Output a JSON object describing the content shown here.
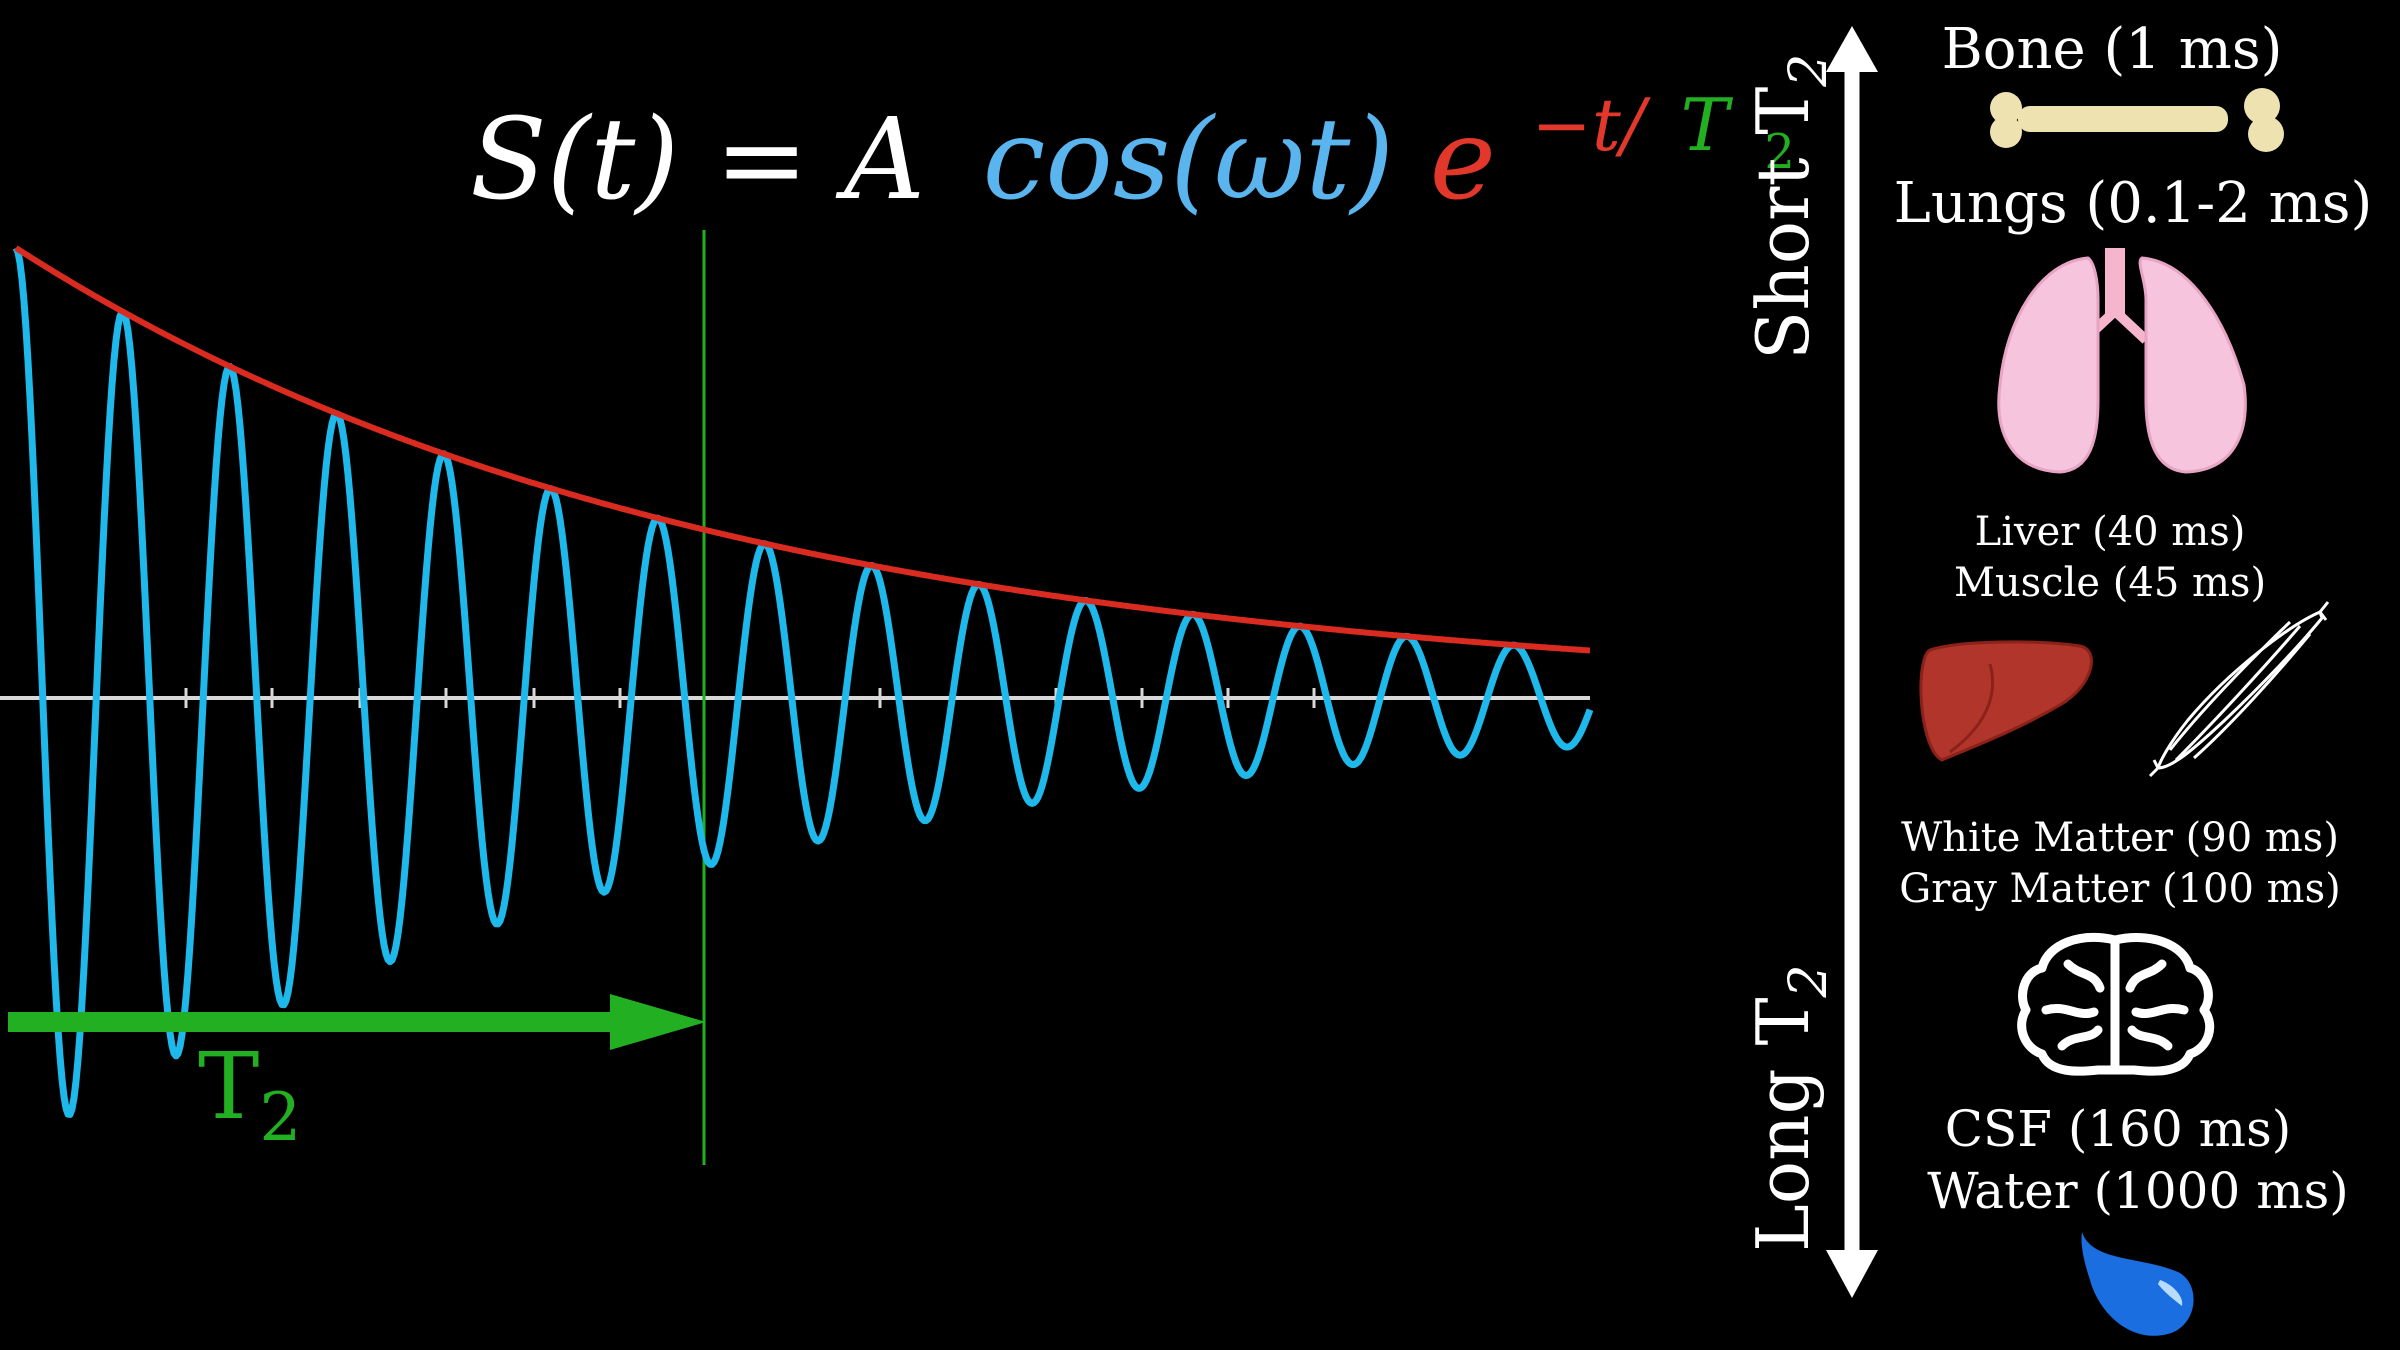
{
  "equation": {
    "lhs": "S(t) = A",
    "cos_part": "cos(ωt)",
    "exp_base": "e",
    "exp_sign": "−t/",
    "exp_T": "T",
    "exp_sub": "2"
  },
  "colors": {
    "signal": "#1fb8ea",
    "envelope": "#d92b20",
    "t2_marker": "#22b022",
    "axis": "#d8d8d8",
    "text": "#ffffff",
    "cos_text": "#5ab4ee",
    "exp_text": "#e2382c"
  },
  "t2_marker": {
    "label": "T",
    "sub": "2"
  },
  "scale": {
    "top_label": "Short T",
    "top_sub": "2",
    "bottom_label": "Long T",
    "bottom_sub": "2"
  },
  "tissues": [
    {
      "label": "Bone (1 ms)",
      "icon": "bone-icon"
    },
    {
      "label": "Lungs (0.1-2 ms)",
      "icon": "lungs-icon"
    },
    {
      "label": "Liver (40 ms)",
      "icon": "liver-icon"
    },
    {
      "label": "Muscle (45 ms)",
      "icon": "muscle-icon"
    },
    {
      "label": "White Matter (90 ms)",
      "icon": "brain-icon"
    },
    {
      "label": "Gray Matter (100 ms)",
      "icon": "brain-icon"
    },
    {
      "label": "CSF (160 ms)",
      "icon": "droplet-icon"
    },
    {
      "label": "Water (1000 ms)",
      "icon": "droplet-icon"
    }
  ]
}
